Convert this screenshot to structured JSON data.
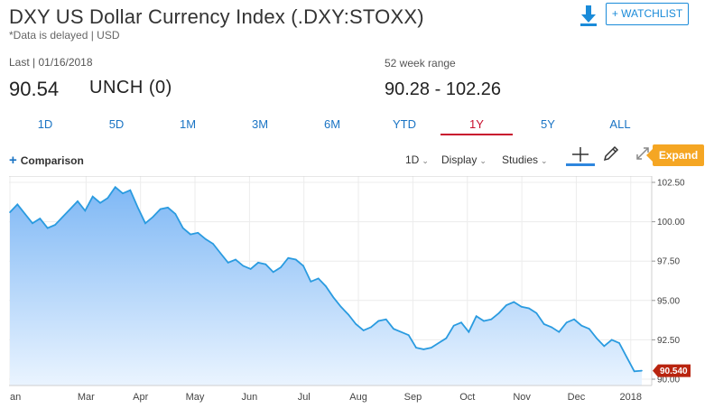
{
  "header": {
    "title": "DXY US Dollar Currency Index (.DXY:STOXX)",
    "delayed_note": "*Data is delayed | USD",
    "watchlist_label": "+ WATCHLIST"
  },
  "quote": {
    "last_label": "Last | 01/16/2018",
    "last_price": "90.54",
    "change": "UNCH (0)",
    "range_label": "52 week range",
    "range_value": "90.28 - 102.26"
  },
  "tabs": [
    {
      "label": "1D",
      "active": false
    },
    {
      "label": "5D",
      "active": false
    },
    {
      "label": "1M",
      "active": false
    },
    {
      "label": "3M",
      "active": false
    },
    {
      "label": "6M",
      "active": false
    },
    {
      "label": "YTD",
      "active": false
    },
    {
      "label": "1Y",
      "active": true
    },
    {
      "label": "5Y",
      "active": false
    },
    {
      "label": "ALL",
      "active": false
    }
  ],
  "toolbar": {
    "comparison_label": "Comparison",
    "interval_label": "1D",
    "display_label": "Display",
    "studies_label": "Studies",
    "expand_label": "Expand"
  },
  "colors": {
    "accent": "#1a74c4",
    "active_tab": "#c8102e",
    "line": "#2a9be0",
    "fill_top": "#7fb8f5",
    "fill_bottom": "#eaf4ff",
    "last_badge": "#b9240f",
    "expand": "#f5a623"
  },
  "chart_data": {
    "type": "area",
    "x_ticks": [
      "an",
      "Mar",
      "Apr",
      "May",
      "Jun",
      "Jul",
      "Aug",
      "Sep",
      "Oct",
      "Nov",
      "Dec",
      "2018"
    ],
    "y_ticks": [
      "102.50",
      "100.00",
      "97.50",
      "95.00",
      "92.50",
      "90.00"
    ],
    "ylim": [
      90.0,
      102.5
    ],
    "last_value_label": "90.540",
    "grid": true,
    "series": [
      {
        "values": [
          100.6,
          101.1,
          100.5,
          99.9,
          100.2,
          99.6,
          99.8,
          100.3,
          100.8,
          101.3,
          100.7,
          101.6,
          101.2,
          101.5,
          102.2,
          101.8,
          102.0,
          100.9,
          99.9,
          100.3,
          100.8,
          100.9,
          100.5,
          99.6,
          99.2,
          99.3,
          98.9,
          98.6,
          98.0,
          97.4,
          97.6,
          97.2,
          97.0,
          97.4,
          97.3,
          96.8,
          97.1,
          97.7,
          97.6,
          97.2,
          96.2,
          96.4,
          95.9,
          95.2,
          94.6,
          94.1,
          93.5,
          93.1,
          93.3,
          93.7,
          93.8,
          93.2,
          93.0,
          92.8,
          92.0,
          91.9,
          92.0,
          92.3,
          92.6,
          93.4,
          93.6,
          93.0,
          94.0,
          93.7,
          93.8,
          94.2,
          94.7,
          94.9,
          94.6,
          94.5,
          94.2,
          93.5,
          93.3,
          93.0,
          93.6,
          93.8,
          93.4,
          93.2,
          92.6,
          92.1,
          92.5,
          92.3,
          91.4,
          90.5,
          90.54
        ]
      }
    ]
  }
}
